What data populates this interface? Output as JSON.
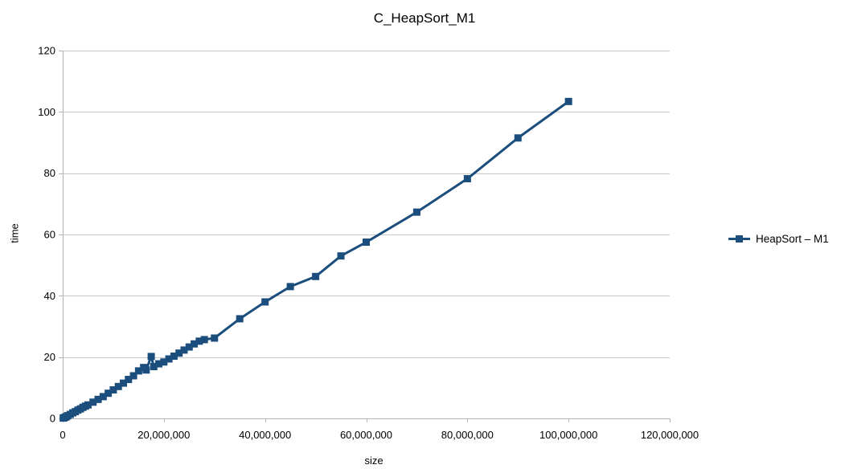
{
  "chart_data": {
    "type": "line",
    "title": "C_HeapSort_M1",
    "xlabel": "size",
    "ylabel": "time",
    "xlim": [
      0,
      120000000
    ],
    "ylim": [
      0,
      120
    ],
    "grid": "horizontal",
    "x_ticks": {
      "values": [
        0,
        20000000,
        40000000,
        60000000,
        80000000,
        100000000,
        120000000
      ],
      "labels": [
        "0",
        "20,000,000",
        "40,000,000",
        "60,000,000",
        "80,000,000",
        "100,000,000",
        "120,000,000"
      ]
    },
    "y_ticks": {
      "values": [
        0,
        20,
        40,
        60,
        80,
        100,
        120
      ],
      "labels": [
        "0",
        "20",
        "40",
        "60",
        "80",
        "100",
        "120"
      ]
    },
    "legend": {
      "position": "right",
      "entries": [
        "HeapSort – M1"
      ]
    },
    "colors": {
      "series": "#1B4E7C",
      "gridline": "#C8C8C8",
      "axis": "#B5B5B5",
      "text": "#000000",
      "background": "#FFFFFF"
    },
    "series": [
      {
        "name": "HeapSort – M1",
        "color": "#1B4E7C",
        "marker": "square",
        "x": [
          100000,
          250000,
          500000,
          750000,
          1000000,
          1500000,
          2000000,
          2500000,
          3000000,
          3500000,
          4000000,
          4500000,
          5000000,
          6000000,
          7000000,
          8000000,
          9000000,
          10000000,
          11000000,
          12000000,
          13000000,
          14000000,
          15000000,
          16000000,
          16500000,
          17500000,
          18000000,
          19000000,
          20000000,
          21000000,
          22000000,
          23000000,
          24000000,
          25000000,
          26000000,
          27000000,
          28000000,
          30000000,
          35000000,
          40000000,
          45000000,
          50000000,
          55000000,
          60000000,
          70000000,
          80000000,
          90000000,
          100000000
        ],
        "y": [
          0.1,
          0.2,
          0.4,
          0.6,
          0.9,
          1.3,
          1.8,
          2.2,
          2.7,
          3.1,
          3.6,
          4.0,
          4.4,
          5.3,
          6.2,
          7.1,
          8.2,
          9.3,
          10.4,
          11.5,
          12.7,
          13.9,
          15.5,
          16.6,
          15.8,
          20.2,
          16.9,
          17.8,
          18.4,
          19.4,
          20.3,
          21.3,
          22.3,
          23.3,
          24.3,
          25.2,
          25.7,
          26.2,
          32.5,
          38.0,
          43.0,
          46.3,
          53.0,
          57.5,
          67.3,
          78.2,
          91.5,
          103.4
        ]
      }
    ]
  }
}
